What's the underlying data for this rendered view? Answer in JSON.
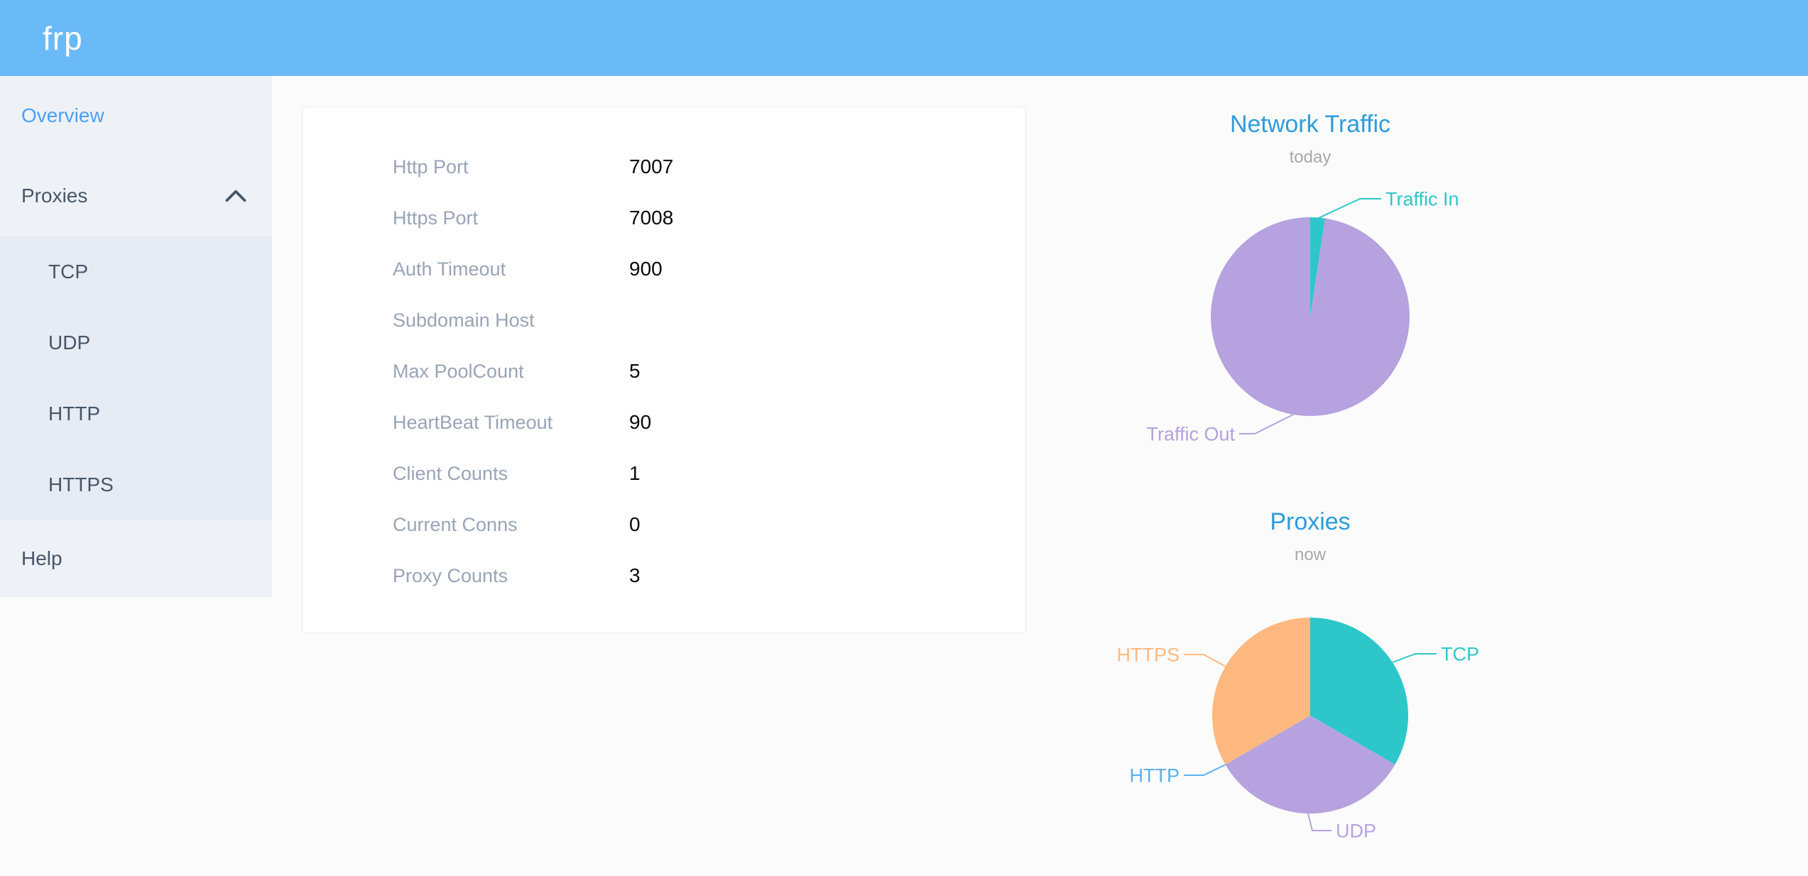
{
  "header": {
    "logo": "frp"
  },
  "sidebar": {
    "overview": "Overview",
    "proxies": "Proxies",
    "tcp": "TCP",
    "udp": "UDP",
    "http": "HTTP",
    "https": "HTTPS",
    "help": "Help"
  },
  "server_info": {
    "rows": [
      {
        "label": "Http Port",
        "value": "7007"
      },
      {
        "label": "Https Port",
        "value": "7008"
      },
      {
        "label": "Auth Timeout",
        "value": "900"
      },
      {
        "label": "Subdomain Host",
        "value": ""
      },
      {
        "label": "Max PoolCount",
        "value": "5"
      },
      {
        "label": "HeartBeat Timeout",
        "value": "90"
      },
      {
        "label": "Client Counts",
        "value": "1"
      },
      {
        "label": "Current Conns",
        "value": "0"
      },
      {
        "label": "Proxy Counts",
        "value": "3"
      }
    ]
  },
  "chart_data": [
    {
      "type": "pie",
      "title": "Network Traffic",
      "subtitle": "today",
      "legend_position": "callout-labels",
      "series": [
        {
          "name": "Traffic In",
          "value": 2.4,
          "color": "#2ec7c9"
        },
        {
          "name": "Traffic Out",
          "value": 97.6,
          "color": "#b6a2de"
        }
      ]
    },
    {
      "type": "pie",
      "title": "Proxies",
      "subtitle": "now",
      "legend_position": "callout-labels",
      "series": [
        {
          "name": "TCP",
          "value": 1,
          "color": "#2ec7c9"
        },
        {
          "name": "UDP",
          "value": 1,
          "color": "#b6a2de"
        },
        {
          "name": "HTTP",
          "value": 0,
          "color": "#5ab1ef"
        },
        {
          "name": "HTTPS",
          "value": 1,
          "color": "#ffb980"
        }
      ]
    }
  ]
}
